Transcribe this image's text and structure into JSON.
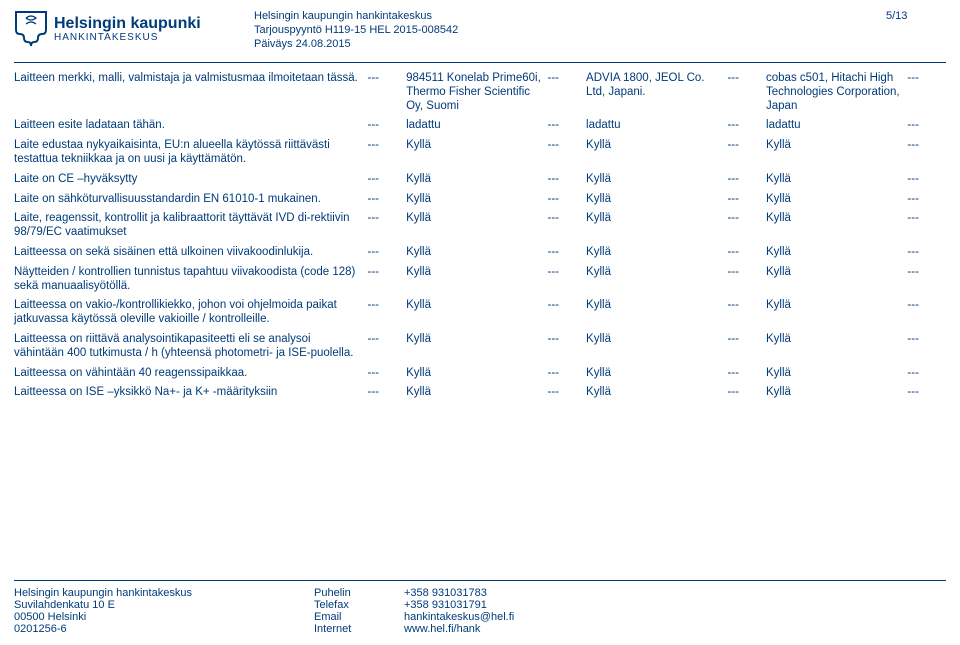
{
  "header": {
    "logo_top": "Helsingin kaupunki",
    "logo_bottom": "HANKINTAKESKUS",
    "line1": "Helsingin kaupungin hankintakeskus",
    "line2": "Tarjouspyyntö H119-15 HEL 2015-008542",
    "line3": "Päiväys 24.08.2015",
    "page": "5/13"
  },
  "rows": [
    {
      "label": "Laitteen merkki, malli, valmistaja ja valmistusmaa ilmoitetaan tässä.",
      "c1": "---",
      "c2": "984511 Konelab Prime60i, Thermo Fisher Scientific Oy, Suomi",
      "c3": "---",
      "c4": "ADVIA 1800, JEOL Co. Ltd, Japani.",
      "c5": "---",
      "c6": "cobas c501, Hitachi High Technologies Corporation, Japan",
      "c7": "---"
    },
    {
      "label": "Laitteen esite ladataan tähän.",
      "c1": "---",
      "c2": "ladattu",
      "c3": "---",
      "c4": "ladattu",
      "c5": "---",
      "c6": "ladattu",
      "c7": "---"
    },
    {
      "label": "Laite edustaa nykyaikaisinta, EU:n alueella käytössä riittävästi testattua tekniikkaa ja on uusi ja käyttämätön.",
      "c1": "---",
      "c2": "Kyllä",
      "c3": "---",
      "c4": "Kyllä",
      "c5": "---",
      "c6": "Kyllä",
      "c7": "---"
    },
    {
      "label": "Laite on CE –hyväksytty",
      "c1": "---",
      "c2": "Kyllä",
      "c3": "---",
      "c4": "Kyllä",
      "c5": "---",
      "c6": "Kyllä",
      "c7": "---"
    },
    {
      "label": "Laite on sähköturvallisuusstandardin EN 61010-1 mukainen.",
      "c1": "---",
      "c2": "Kyllä",
      "c3": "---",
      "c4": "Kyllä",
      "c5": "---",
      "c6": "Kyllä",
      "c7": "---"
    },
    {
      "label": "Laite, reagenssit, kontrollit ja kalibraattorit täyttävät IVD di-rektiivin 98/79/EC vaatimukset",
      "c1": "---",
      "c2": "Kyllä",
      "c3": "---",
      "c4": "Kyllä",
      "c5": "---",
      "c6": "Kyllä",
      "c7": "---"
    },
    {
      "label": "Laitteessa on sekä sisäinen että ulkoinen viivakoodinlukija.",
      "c1": "---",
      "c2": "Kyllä",
      "c3": "---",
      "c4": "Kyllä",
      "c5": "---",
      "c6": "Kyllä",
      "c7": "---"
    },
    {
      "label": "Näytteiden / kontrollien tunnistus tapahtuu viivakoodista (code 128) sekä manuaalisyötöllä.",
      "c1": "---",
      "c2": "Kyllä",
      "c3": "---",
      "c4": "Kyllä",
      "c5": "---",
      "c6": "Kyllä",
      "c7": "---"
    },
    {
      "label": "Laitteessa on vakio-/kontrollikiekko, johon voi ohjelmoida paikat jatkuvassa käytössä oleville vakioille / kontrolleille.",
      "c1": "---",
      "c2": "Kyllä",
      "c3": "---",
      "c4": "Kyllä",
      "c5": "---",
      "c6": "Kyllä",
      "c7": "---"
    },
    {
      "label": "Laitteessa on riittävä analysointikapasiteetti eli se analysoi vähintään 400 tutkimusta / h (yhteensä photometri- ja ISE-puolella.",
      "c1": "---",
      "c2": "Kyllä",
      "c3": "---",
      "c4": "Kyllä",
      "c5": "---",
      "c6": "Kyllä",
      "c7": "---"
    },
    {
      "label": "Laitteessa on vähintään 40 reagenssipaikkaa.",
      "c1": "---",
      "c2": "Kyllä",
      "c3": "---",
      "c4": "Kyllä",
      "c5": "---",
      "c6": "Kyllä",
      "c7": "---"
    },
    {
      "label": "Laitteessa on ISE –yksikkö Na+- ja K+ -määrityksiin",
      "c1": "---",
      "c2": "Kyllä",
      "c3": "---",
      "c4": "Kyllä",
      "c5": "---",
      "c6": "Kyllä",
      "c7": "---"
    }
  ],
  "footer": {
    "addr": [
      "Helsingin kaupungin hankintakeskus",
      "Suvilahdenkatu 10 E",
      "00500 Helsinki",
      "0201256-6"
    ],
    "lbl": [
      "Puhelin",
      "Telefax",
      "Email",
      "Internet"
    ],
    "val": [
      "+358 931031783",
      "+358 931031791",
      "hankintakeskus@hel.fi",
      "www.hel.fi/hank"
    ]
  }
}
